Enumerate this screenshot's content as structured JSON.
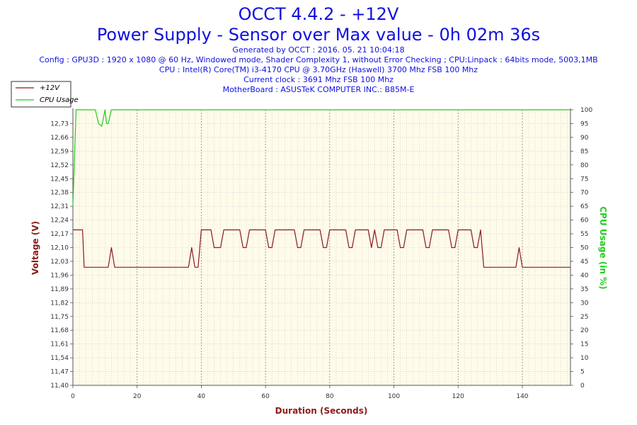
{
  "header": {
    "title": "OCCT 4.4.2 - +12V",
    "subtitle": "Power Supply - Sensor over Max value - 0h 02m 36s",
    "info_lines": [
      "Generated by OCCT : 2016. 05. 21 10:04:18",
      "Config : GPU3D : 1920 x 1080 @ 60 Hz, Windowed mode, Shader Complexity 1, without Error Checking ; CPU:Linpack : 64bits mode, 5003,1MB",
      "CPU : Intel(R) Core(TM) i3-4170 CPU @ 3.70GHz (Haswell) 3700 Mhz FSB 100 Mhz",
      "Current clock : 3691 Mhz FSB 100 Mhz",
      "MotherBoard : ASUSTeK COMPUTER INC.: B85M-E"
    ]
  },
  "colors": {
    "voltage": "#8b1a1a",
    "cpu": "#22cc22",
    "title": "#1010e0",
    "plot_bg": "#fffbeb",
    "grid": "#bbbbbb"
  },
  "chart_data": {
    "type": "line",
    "xlabel": "Duration (Seconds)",
    "ylabel_left": "Voltage (V)",
    "ylabel_right": "CPU Usage (in %)",
    "xlim": [
      0,
      155
    ],
    "ylim_left": [
      11.4,
      12.8
    ],
    "ylim_right": [
      0,
      100
    ],
    "x_ticks": [
      "0",
      "20",
      "40",
      "60",
      "80",
      "100",
      "120",
      "140"
    ],
    "y_left_ticks": [
      "11,40",
      "11,47",
      "11,54",
      "11,61",
      "11,68",
      "11,75",
      "11,82",
      "11,89",
      "11,96",
      "12,03",
      "12,10",
      "12,17",
      "12,24",
      "12,31",
      "12,38",
      "12,45",
      "12,52",
      "12,59",
      "12,66",
      "12,73"
    ],
    "y_right_ticks": [
      "0",
      "5",
      "10",
      "15",
      "20",
      "25",
      "30",
      "35",
      "40",
      "45",
      "50",
      "55",
      "60",
      "65",
      "70",
      "75",
      "80",
      "85",
      "90",
      "95",
      "100"
    ],
    "grid": true,
    "legend_position": "top-left",
    "series": [
      {
        "name": "+12V",
        "axis": "left",
        "points": [
          [
            0,
            12.19
          ],
          [
            3,
            12.19
          ],
          [
            3.5,
            12.0
          ],
          [
            11,
            12.0
          ],
          [
            12,
            12.1
          ],
          [
            13,
            12.0
          ],
          [
            36,
            12.0
          ],
          [
            37,
            12.1
          ],
          [
            38,
            12.0
          ],
          [
            39,
            12.0
          ],
          [
            40,
            12.19
          ],
          [
            43,
            12.19
          ],
          [
            44,
            12.1
          ],
          [
            46,
            12.1
          ],
          [
            47,
            12.19
          ],
          [
            52,
            12.19
          ],
          [
            53,
            12.1
          ],
          [
            54,
            12.1
          ],
          [
            55,
            12.19
          ],
          [
            60,
            12.19
          ],
          [
            61,
            12.1
          ],
          [
            62,
            12.1
          ],
          [
            63,
            12.19
          ],
          [
            69,
            12.19
          ],
          [
            70,
            12.1
          ],
          [
            71,
            12.1
          ],
          [
            72,
            12.19
          ],
          [
            77,
            12.19
          ],
          [
            78,
            12.1
          ],
          [
            79,
            12.1
          ],
          [
            80,
            12.19
          ],
          [
            85,
            12.19
          ],
          [
            86,
            12.1
          ],
          [
            87,
            12.1
          ],
          [
            88,
            12.19
          ],
          [
            92,
            12.19
          ],
          [
            93,
            12.1
          ],
          [
            94,
            12.19
          ],
          [
            95,
            12.1
          ],
          [
            96,
            12.1
          ],
          [
            97,
            12.19
          ],
          [
            101,
            12.19
          ],
          [
            102,
            12.1
          ],
          [
            103,
            12.1
          ],
          [
            104,
            12.19
          ],
          [
            109,
            12.19
          ],
          [
            110,
            12.1
          ],
          [
            111,
            12.1
          ],
          [
            112,
            12.19
          ],
          [
            117,
            12.19
          ],
          [
            118,
            12.1
          ],
          [
            119,
            12.1
          ],
          [
            120,
            12.19
          ],
          [
            124,
            12.19
          ],
          [
            125,
            12.1
          ],
          [
            126,
            12.1
          ],
          [
            127,
            12.19
          ],
          [
            128,
            12.0
          ],
          [
            138,
            12.0
          ],
          [
            139,
            12.1
          ],
          [
            140,
            12.0
          ],
          [
            155,
            12.0
          ]
        ]
      },
      {
        "name": "CPU Usage",
        "axis": "right",
        "points": [
          [
            0,
            65
          ],
          [
            1,
            100
          ],
          [
            7,
            100
          ],
          [
            8,
            95
          ],
          [
            9,
            94
          ],
          [
            10,
            100
          ],
          [
            10.5,
            95
          ],
          [
            11,
            95
          ],
          [
            12,
            100
          ],
          [
            155,
            100
          ]
        ]
      }
    ]
  }
}
